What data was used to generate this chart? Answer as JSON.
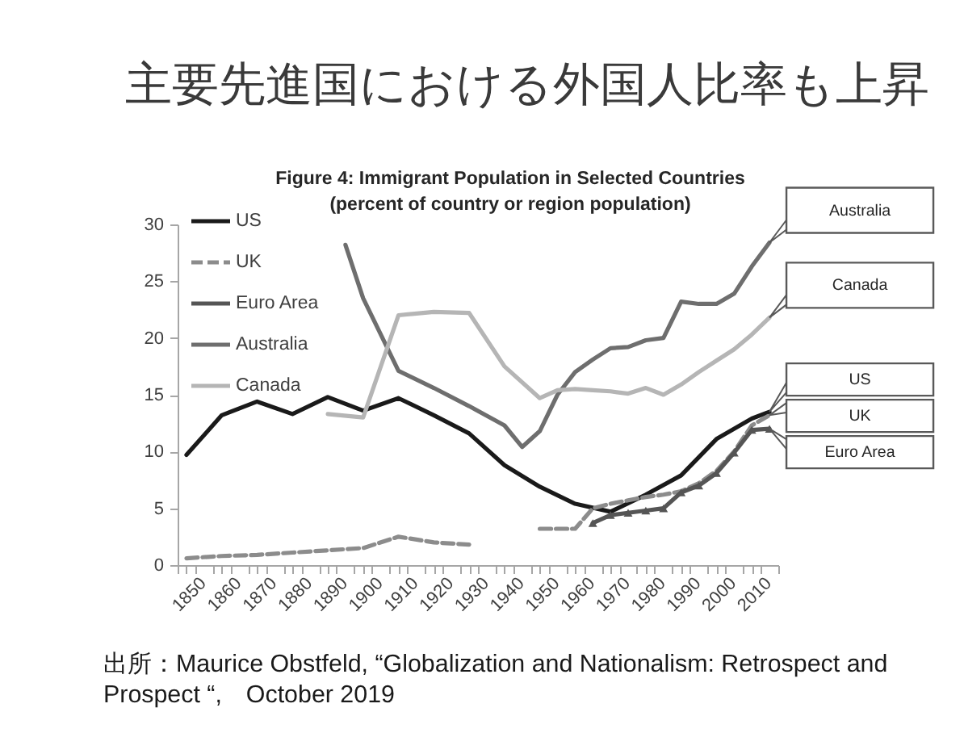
{
  "chart_data": {
    "type": "line",
    "title": "主要先進国における外国人比率も上昇",
    "subtitle": "Figure 4: Immigrant Population in Selected Countries\n(percent of country or region population)",
    "xlim": [
      1847.5,
      2017.5
    ],
    "xticks": [
      {
        "value": 1847.5,
        "label": null
      },
      1850,
      {
        "value": 1852.5,
        "label": null
      },
      {
        "value": 1857.5,
        "label": null
      },
      1860,
      {
        "value": 1862.5,
        "label": null
      },
      {
        "value": 1867.5,
        "label": null
      },
      1870,
      {
        "value": 1872.5,
        "label": null
      },
      {
        "value": 1877.5,
        "label": null
      },
      1880,
      {
        "value": 1882.5,
        "label": null
      },
      {
        "value": 1887.5,
        "label": null
      },
      1890,
      {
        "value": 1892.5,
        "label": null
      },
      {
        "value": 1897.5,
        "label": null
      },
      1900,
      {
        "value": 1902.5,
        "label": null
      },
      {
        "value": 1907.5,
        "label": null
      },
      1910,
      {
        "value": 1912.5,
        "label": null
      },
      {
        "value": 1917.5,
        "label": null
      },
      1920,
      {
        "value": 1922.5,
        "label": null
      },
      {
        "value": 1927.5,
        "label": null
      },
      1930,
      {
        "value": 1932.5,
        "label": null
      },
      {
        "value": 1937.5,
        "label": null
      },
      1940,
      {
        "value": 1942.5,
        "label": null
      },
      {
        "value": 1947.5,
        "label": null
      },
      1950,
      {
        "value": 1952.5,
        "label": null
      },
      {
        "value": 1957.5,
        "label": null
      },
      1960,
      {
        "value": 1962.5,
        "label": null
      },
      {
        "value": 1967.5,
        "label": null
      },
      1970,
      {
        "value": 1972.5,
        "label": null
      },
      {
        "value": 1977.5,
        "label": null
      },
      1980,
      {
        "value": 1982.5,
        "label": null
      },
      {
        "value": 1987.5,
        "label": null
      },
      1990,
      {
        "value": 1992.5,
        "label": null
      },
      {
        "value": 1997.5,
        "label": null
      },
      2000,
      {
        "value": 2002.5,
        "label": null
      },
      {
        "value": 2007.5,
        "label": null
      },
      2010,
      {
        "value": 2012.5,
        "label": null
      },
      {
        "value": 2017.5,
        "label": null
      }
    ],
    "ylim": [
      0,
      30
    ],
    "yticks": [
      0,
      5,
      10,
      15,
      20,
      25,
      30
    ],
    "legend": "top left",
    "series": [
      {
        "name": "US",
        "color": "#1a1a1a",
        "line_style": "solid",
        "x": [
          1850,
          1860,
          1870,
          1880,
          1890,
          1900,
          1910,
          1920,
          1930,
          1940,
          1950,
          1960,
          1970,
          1980,
          1990,
          2000,
          2010,
          2015
        ],
        "values": [
          9.7,
          13.2,
          14.4,
          13.3,
          14.8,
          13.6,
          14.7,
          13.2,
          11.6,
          8.8,
          6.9,
          5.4,
          4.7,
          6.2,
          7.9,
          11.1,
          12.9,
          13.5
        ]
      },
      {
        "name": "UK",
        "color": "#8c8c8c",
        "line_style": "dashed",
        "x": [
          1850,
          1860,
          1870,
          1880,
          1890,
          1900,
          1910,
          1920,
          1930,
          1940,
          1950,
          1960,
          1965,
          1970,
          1975,
          1980,
          1985,
          1990,
          1995,
          2000,
          2005,
          2010,
          2015
        ],
        "values": [
          0.6,
          0.8,
          0.9,
          1.1,
          1.3,
          1.5,
          2.5,
          2.0,
          1.8,
          null,
          3.2,
          3.2,
          5.0,
          5.4,
          5.7,
          6.0,
          6.2,
          6.5,
          7.2,
          8.3,
          10.0,
          12.3,
          13.2
        ]
      },
      {
        "name": "Euro Area",
        "color": "#555555",
        "line_style": "solid",
        "marker": "triangle",
        "x": [
          1965,
          1970,
          1975,
          1980,
          1985,
          1990,
          1995,
          2000,
          2005,
          2010,
          2015
        ],
        "values": [
          3.7,
          4.4,
          4.6,
          4.8,
          5.0,
          6.4,
          7.0,
          8.1,
          9.9,
          11.9,
          12.0
        ]
      },
      {
        "name": "Australia",
        "color": "#6e6e6e",
        "line_style": "solid",
        "x": [
          1895,
          1900,
          1910,
          1920,
          1930,
          1940,
          1945,
          1950,
          1955,
          1960,
          1965,
          1970,
          1975,
          1980,
          1985,
          1990,
          1995,
          2000,
          2005,
          2010,
          2015
        ],
        "values": [
          28.2,
          23.5,
          17.1,
          15.6,
          14.0,
          12.3,
          10.4,
          11.8,
          15.0,
          17.0,
          18.1,
          19.1,
          19.2,
          19.8,
          20.0,
          23.2,
          23.0,
          23.0,
          23.9,
          26.3,
          28.4
        ]
      },
      {
        "name": "Canada",
        "color": "#b5b5b5",
        "line_style": "solid",
        "x": [
          1890,
          1900,
          1910,
          1920,
          1930,
          1940,
          1950,
          1955,
          1960,
          1965,
          1970,
          1975,
          1980,
          1985,
          1990,
          1995,
          2000,
          2005,
          2010,
          2015
        ],
        "values": [
          13.3,
          13.0,
          22.0,
          22.3,
          22.2,
          17.5,
          14.7,
          15.4,
          15.5,
          15.4,
          15.3,
          15.1,
          15.6,
          15.0,
          15.9,
          17.0,
          18.0,
          19.0,
          20.3,
          21.8
        ]
      }
    ],
    "annotations": [
      "出所：Maurice Obstfeld, “Globalization and Nationalism: Retrospect and Prospect “,　October 2019"
    ]
  }
}
